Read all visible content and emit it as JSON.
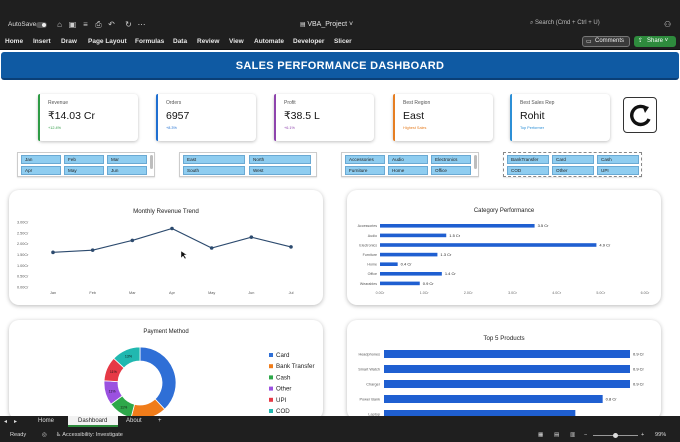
{
  "titlebar": {
    "autosave_label": "AutoSave",
    "doc_title": "VBA_Project",
    "search_placeholder": "Search (Cmd + Ctrl + U)"
  },
  "ribbon": {
    "tabs": [
      "Home",
      "Insert",
      "Draw",
      "Page Layout",
      "Formulas",
      "Data",
      "Review",
      "View",
      "Automate",
      "Developer",
      "Slicer"
    ],
    "comments_label": "Comments",
    "share_label": "Share"
  },
  "dashboard": {
    "title": "SALES PERFORMANCE DASHBOARD",
    "kpis": [
      {
        "label": "Revenue",
        "value": "₹14.03 Cr",
        "sub": "+12.4%",
        "color": "#2e9b45"
      },
      {
        "label": "Orders",
        "value": "6957",
        "sub": "+8.3%",
        "color": "#1f6fd1"
      },
      {
        "label": "Profit",
        "value": "₹38.5 L",
        "sub": "+6.1%",
        "color": "#8e44ad"
      },
      {
        "label": "Best Region",
        "value": "East",
        "sub": "Highest Sales",
        "color": "#e67e22"
      },
      {
        "label": "Best Sales Rep",
        "value": "Rohit",
        "sub": "Top Performer",
        "color": "#2c8fd6"
      }
    ],
    "slicers": {
      "months": [
        "Jan",
        "Feb",
        "Mar",
        "Apr",
        "May",
        "Jun"
      ],
      "regions": [
        "East",
        "North",
        "South",
        "West"
      ],
      "categories": [
        "Accessories",
        "Audio",
        "Electronics",
        "Furniture",
        "Home",
        "Office"
      ],
      "payments": [
        "BankTransfer",
        "Card",
        "Cash",
        "COD",
        "Other",
        "UPI"
      ]
    }
  },
  "sheets": {
    "tabs": [
      "Home",
      "Dashboard",
      "About"
    ],
    "active": "Dashboard"
  },
  "status": {
    "ready": "Ready",
    "accessibility": "Accessibility: Investigate",
    "zoom": "99%"
  },
  "icons": {
    "refresh": "refresh-icon",
    "search": "search-icon"
  },
  "chart_data": [
    {
      "type": "line",
      "title": "Monthly Revenue Trend",
      "categories": [
        "Jan",
        "Feb",
        "Mar",
        "Apr",
        "May",
        "Jun",
        "Jul"
      ],
      "values": [
        1.6,
        1.7,
        2.15,
        2.7,
        1.8,
        2.3,
        1.85
      ],
      "y_ticks": [
        "0.00Cr",
        "0.50Cr",
        "1.00Cr",
        "1.50Cr",
        "2.00Cr",
        "2.50Cr",
        "3.00Cr"
      ],
      "ylim": [
        0,
        3
      ],
      "color": "#2c4a6e"
    },
    {
      "type": "bar",
      "orientation": "horizontal",
      "title": "Category Performance",
      "categories": [
        "Accessories",
        "Audio",
        "Electronics",
        "Furniture",
        "Home",
        "Office",
        "Wearables"
      ],
      "values": [
        3.5,
        1.5,
        4.9,
        1.3,
        0.4,
        1.4,
        0.9
      ],
      "data_labels": [
        "3.5 Cr",
        "1.5 Cr",
        "4.9 Cr",
        "1.3 Cr",
        "0.4 Cr",
        "1.4 Cr",
        "0.9 Cr"
      ],
      "x_ticks": [
        "0.0Cr",
        "1.0Cr",
        "2.0Cr",
        "3.0Cr",
        "4.0Cr",
        "5.0Cr",
        "6.0Cr"
      ],
      "xlim": [
        0,
        6
      ],
      "color": "#1f5fd1"
    },
    {
      "type": "pie",
      "title": "Payment Method",
      "labels": [
        "Card",
        "Bank Transfer",
        "Cash",
        "Other",
        "UPI",
        "COD"
      ],
      "values": [
        38,
        16,
        11,
        11,
        11,
        13
      ],
      "data_labels": [
        "",
        "",
        "11%",
        "11%",
        "11%",
        "13%"
      ],
      "colors": [
        "#2f6fd6",
        "#f07c1a",
        "#2ea84a",
        "#9b51e0",
        "#e63946",
        "#21b8b0"
      ],
      "legend": "right"
    },
    {
      "type": "bar",
      "orientation": "horizontal",
      "title": "Top 5 Products",
      "categories": [
        "Headphones",
        "Smart Watch",
        "Charger",
        "Power Bank",
        "Laptop"
      ],
      "values": [
        0.9,
        0.9,
        0.9,
        0.8,
        0.7
      ],
      "data_labels": [
        "0.9 Cr",
        "0.9 Cr",
        "0.9 Cr",
        "0.8 Cr",
        ""
      ],
      "color": "#1f5fd1"
    }
  ]
}
